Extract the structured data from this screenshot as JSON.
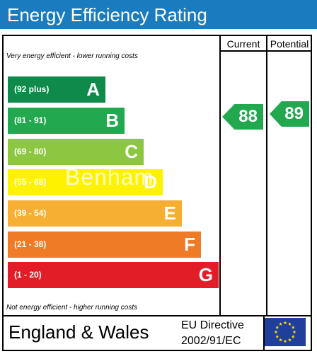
{
  "header": {
    "title": "Energy Efficiency Rating"
  },
  "columns": {
    "current": "Current",
    "potential": "Potential"
  },
  "notes": {
    "top": "Very energy efficient - lower running costs",
    "bottom": "Not energy efficient - higher running costs"
  },
  "bands": [
    {
      "range": "(92 plus)",
      "letter": "A",
      "color": "#0f8a4a"
    },
    {
      "range": "(81 - 91)",
      "letter": "B",
      "color": "#22a94f"
    },
    {
      "range": "(69 - 80)",
      "letter": "C",
      "color": "#8dc641"
    },
    {
      "range": "(55 - 68)",
      "letter": "D",
      "color": "#fff200"
    },
    {
      "range": "(39 - 54)",
      "letter": "E",
      "color": "#f6ae33"
    },
    {
      "range": "(21 - 38)",
      "letter": "F",
      "color": "#ef7b26"
    },
    {
      "range": "(1 - 20)",
      "letter": "G",
      "color": "#e31d28"
    }
  ],
  "ratings": {
    "current": {
      "value": "88",
      "band": "B",
      "color": "#22a94f"
    },
    "potential": {
      "value": "89",
      "band": "B",
      "color": "#22a94f"
    }
  },
  "watermark": "Benham",
  "footer": {
    "region": "England & Wales",
    "directive_line1": "EU Directive",
    "directive_line2": "2002/91/EC",
    "flag_icon": "eu-flag-icon"
  }
}
